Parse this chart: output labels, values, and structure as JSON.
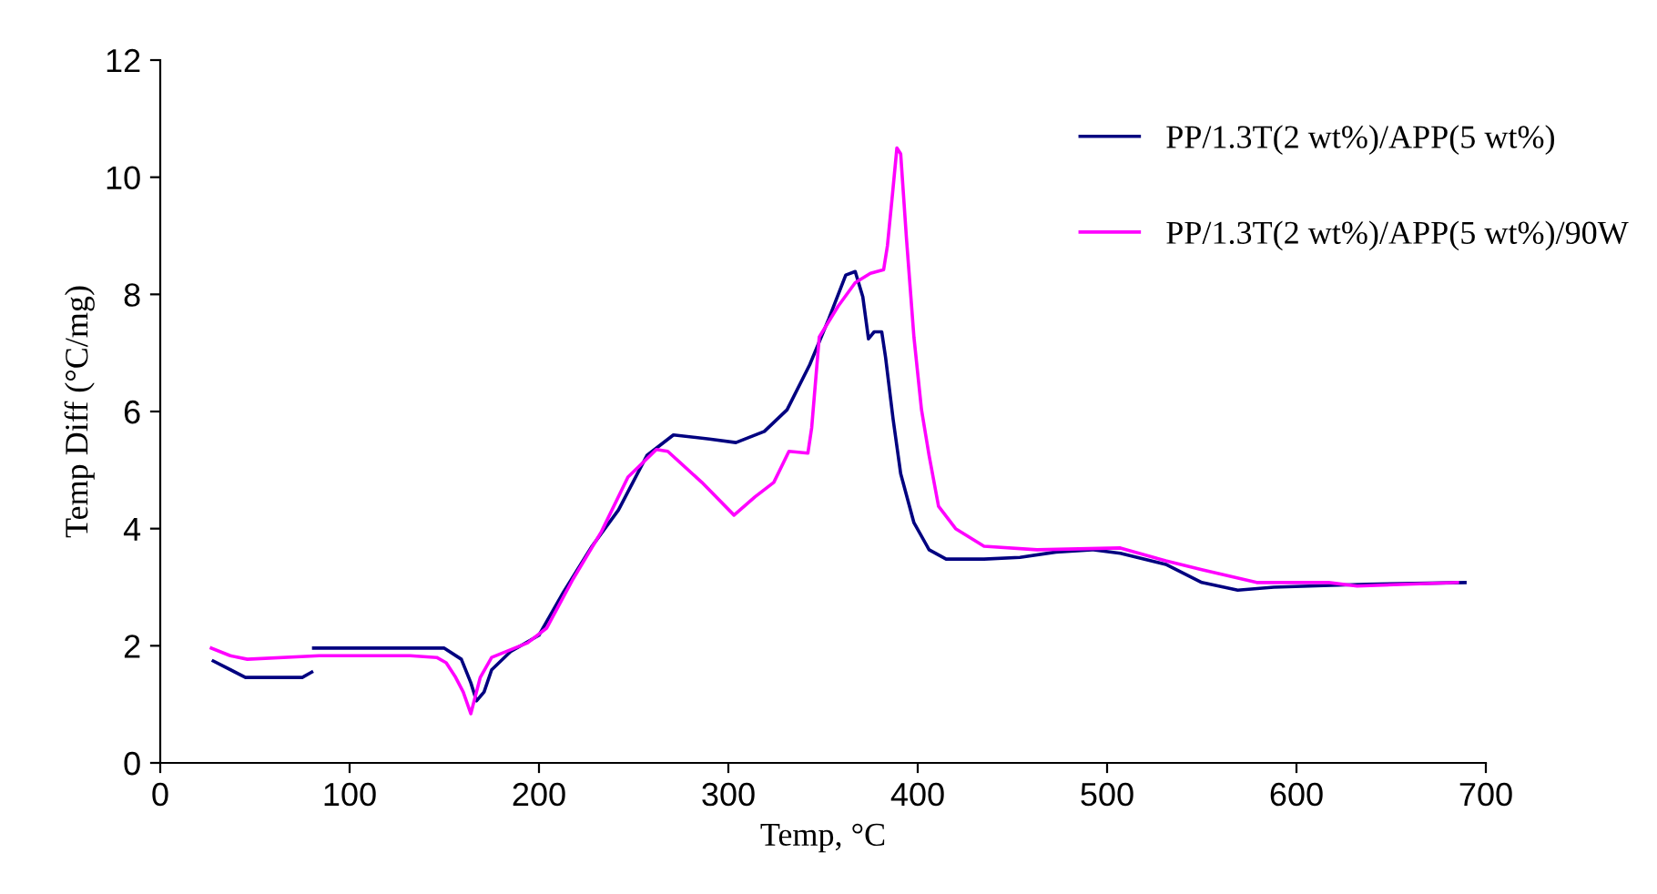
{
  "chart_data": {
    "type": "line",
    "xlabel": "Temp, °C",
    "ylabel": "Temp Diff (°C/mg)",
    "xlim": [
      0,
      700
    ],
    "xticks": [
      0,
      100,
      200,
      300,
      400,
      500,
      600,
      700
    ],
    "ylim": [
      0,
      12
    ],
    "yticks": [
      0,
      2,
      4,
      6,
      8,
      10,
      12
    ],
    "grid": false,
    "legend": "top right",
    "marker": "none",
    "line_style": "solid",
    "series": [
      {
        "name": "PP/1.3T(2 wt%)/APP(5 wt%)",
        "color": "#000080",
        "x": [
          28,
          45,
          75,
          80,
          80.5,
          81,
          150,
          159,
          164,
          167,
          171,
          175,
          185,
          200,
          213,
          228,
          242,
          257,
          271,
          290,
          304,
          319,
          331,
          343,
          353,
          362,
          367,
          371,
          374,
          377,
          381,
          383,
          387,
          391,
          398,
          406,
          415,
          435,
          454,
          473,
          492,
          507,
          531,
          550,
          569,
          588,
          637,
          689
        ],
        "values": [
          1.74,
          1.46,
          1.46,
          1.55,
          null,
          1.96,
          1.96,
          1.77,
          1.37,
          1.06,
          1.21,
          1.59,
          1.9,
          2.18,
          2.92,
          3.7,
          4.32,
          5.25,
          5.6,
          5.53,
          5.47,
          5.66,
          6.03,
          6.8,
          7.58,
          8.33,
          8.39,
          7.96,
          7.24,
          7.36,
          7.36,
          6.93,
          5.87,
          4.94,
          4.1,
          3.64,
          3.48,
          3.48,
          3.51,
          3.6,
          3.64,
          3.58,
          3.39,
          3.08,
          2.95,
          3.0,
          3.05,
          3.08
        ]
      },
      {
        "name": "PP/1.3T(2 wt%)/APP(5 wt%)/90W",
        "color": "#ff00ff",
        "x": [
          27,
          37,
          46,
          84,
          132,
          146,
          151,
          156,
          160,
          164,
          166,
          169,
          175,
          194,
          204,
          218,
          233,
          247,
          262,
          268,
          286,
          303,
          314,
          324,
          332,
          342,
          344,
          348,
          358,
          367,
          375,
          382,
          384,
          387,
          389,
          391,
          394,
          398,
          402,
          406,
          411,
          420,
          435,
          463,
          507,
          531,
          550,
          579,
          617,
          632,
          685
        ],
        "values": [
          1.96,
          1.83,
          1.77,
          1.83,
          1.83,
          1.8,
          1.71,
          1.46,
          1.21,
          0.84,
          1.09,
          1.46,
          1.8,
          2.05,
          2.3,
          3.14,
          3.95,
          4.88,
          5.35,
          5.32,
          4.79,
          4.23,
          4.54,
          4.79,
          5.32,
          5.29,
          5.72,
          7.27,
          7.8,
          8.2,
          8.36,
          8.42,
          8.83,
          9.82,
          10.5,
          10.4,
          8.98,
          7.27,
          6.03,
          5.25,
          4.38,
          4.0,
          3.7,
          3.64,
          3.67,
          3.45,
          3.3,
          3.08,
          3.08,
          3.02,
          3.08
        ]
      }
    ]
  }
}
